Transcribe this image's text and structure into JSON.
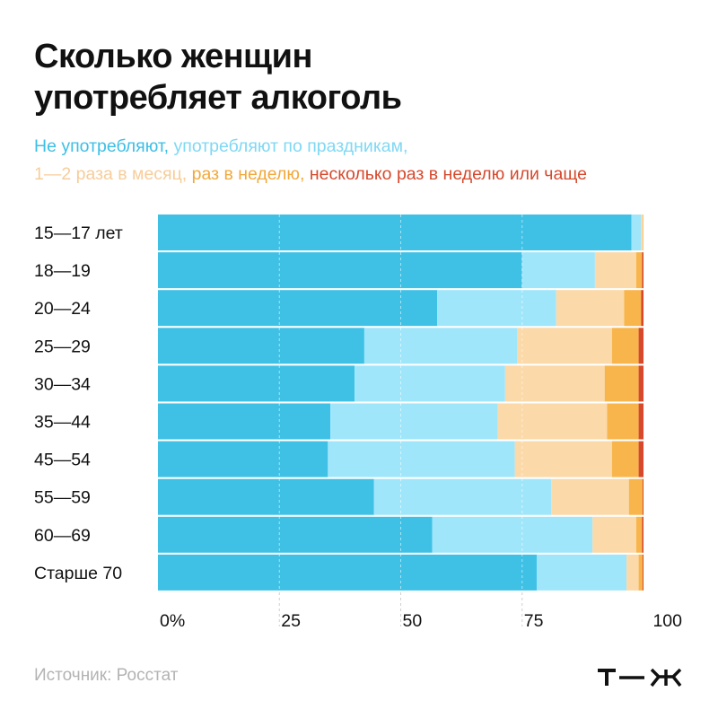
{
  "title_line1": "Сколько женщин",
  "title_line2": "употребляет алкоголь",
  "legend_items": [
    {
      "label": "Не употребляют,",
      "color": "#3dbfe6"
    },
    {
      "label": "употребляют по праздникам,",
      "color": "#7fd8f4"
    },
    {
      "label": "1—2 раза в месяц,",
      "color": "#f7cd9a"
    },
    {
      "label": "раз в неделю,",
      "color": "#f2a83a"
    },
    {
      "label": "несколько раз в неделю или чаще",
      "color": "#d6492d"
    }
  ],
  "source": "Источник: Росстат",
  "logo_text": "т—ж",
  "chart_data": {
    "type": "bar",
    "orientation": "horizontal",
    "stacked": true,
    "categories": [
      "15—17 лет",
      "18—19",
      "20—24",
      "25—29",
      "30—34",
      "35—44",
      "45—54",
      "55—59",
      "60—69",
      "Старше 70"
    ],
    "series": [
      {
        "name": "Не употребляют",
        "color": "#3fc1e6",
        "values": [
          97.5,
          75,
          57.5,
          42.5,
          40.5,
          35.5,
          35,
          44.5,
          56.5,
          78
        ]
      },
      {
        "name": "употребляют по праздникам",
        "color": "#a0e6fb",
        "values": [
          2,
          15,
          24.5,
          31.5,
          31,
          34.5,
          38.5,
          36.5,
          33,
          18.5
        ]
      },
      {
        "name": "1—2 раза в месяц",
        "color": "#fbd9a9",
        "values": [
          0.4,
          8.5,
          14,
          19.5,
          20.5,
          22.5,
          20,
          16,
          9,
          2.5
        ]
      },
      {
        "name": "раз в неделю",
        "color": "#f8b54c",
        "values": [
          0.1,
          1.2,
          3.5,
          5.5,
          7,
          6.5,
          5.5,
          2.8,
          1.2,
          0.8
        ]
      },
      {
        "name": "несколько раз в неделю или чаще",
        "color": "#d6492d",
        "values": [
          0,
          0.3,
          0.5,
          1,
          1,
          1,
          1,
          0.2,
          0.3,
          0.2
        ]
      }
    ],
    "xticks": [
      0,
      25,
      50,
      75,
      100
    ],
    "xtick_labels": [
      "0%",
      "25",
      "50",
      "75",
      "100"
    ],
    "xlim": [
      0,
      100
    ],
    "gridlines": [
      25,
      50,
      75
    ]
  }
}
